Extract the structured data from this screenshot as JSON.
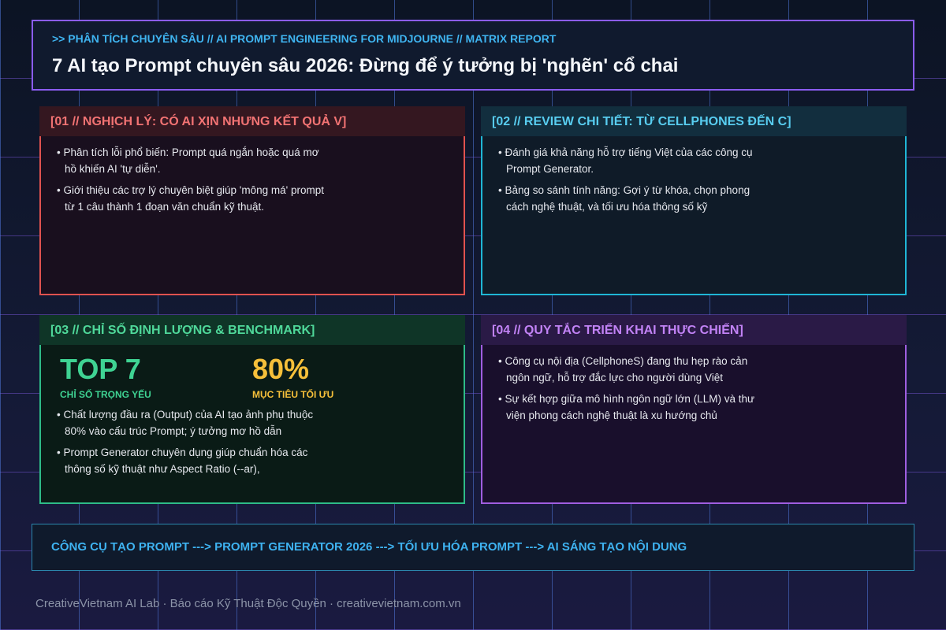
{
  "header": {
    "kicker": ">> PHÂN TÍCH CHUYÊN SÂU // AI PROMPT ENGINEERING FOR MIDJOURNE // MATRIX REPORT",
    "title": "7 AI tạo Prompt chuyên sâu 2026: Đừng để ý tưởng bị 'nghẽn' cổ chai"
  },
  "panels": [
    {
      "title": "[01 // NGHỊCH LÝ: CÓ AI XỊN NHƯNG KẾT QUẢ V]",
      "bullets": [
        "Phân tích lỗi phổ biến: Prompt quá ngắn hoặc quá mơ hồ khiến AI 'tự diễn'.",
        "Giới thiệu các trợ lý chuyên biệt giúp 'mông má' prompt từ 1 câu thành 1 đoạn văn chuẩn kỹ thuật."
      ]
    },
    {
      "title": "[02 // REVIEW CHI TIẾT: TỪ CELLPHONES ĐẾN C]",
      "bullets": [
        "Đánh giá khả năng hỗ trợ tiếng Việt của các công cụ Prompt Generator.",
        "Bảng so sánh tính năng: Gợi ý từ khóa, chọn phong cách nghệ thuật, và tối ưu hóa thông số kỹ"
      ]
    },
    {
      "title": "[03 // CHỈ SỐ ĐỊNH LƯỢNG & BENCHMARK]",
      "stats": [
        {
          "value": "TOP 7",
          "label": "CHỈ SỐ TRỌNG YẾU"
        },
        {
          "value": "80%",
          "label": "MỤC TIÊU TỐI ƯU"
        }
      ],
      "bullets": [
        "Chất lượng đầu ra (Output) của AI tạo ảnh phụ thuộc 80% vào cấu trúc Prompt; ý tưởng mơ hồ dẫn",
        "Prompt Generator chuyên dụng giúp chuẩn hóa các thông số kỹ thuật như Aspect Ratio (--ar),"
      ]
    },
    {
      "title": "[04 // QUY TẮC TRIỂN KHAI THỰC CHIẾN]",
      "bullets": [
        "Công cụ nội địa (CellphoneS) đang thu hẹp rào cản ngôn ngữ, hỗ trợ đắc lực cho người dùng Việt",
        "Sự kết hợp giữa mô hình ngôn ngữ lớn (LLM) và thư viện phong cách nghệ thuật là xu hướng chủ"
      ]
    }
  ],
  "flow": "CÔNG CỤ TẠO PROMPT ---> PROMPT GENERATOR 2026 ---> TỐI ƯU HÓA PROMPT ---> AI SÁNG TẠO NỘI DUNG",
  "credit": "CreativeVietnam AI Lab · Báo cáo Kỹ Thuật Độc Quyền · creativevietnam.com.vn"
}
